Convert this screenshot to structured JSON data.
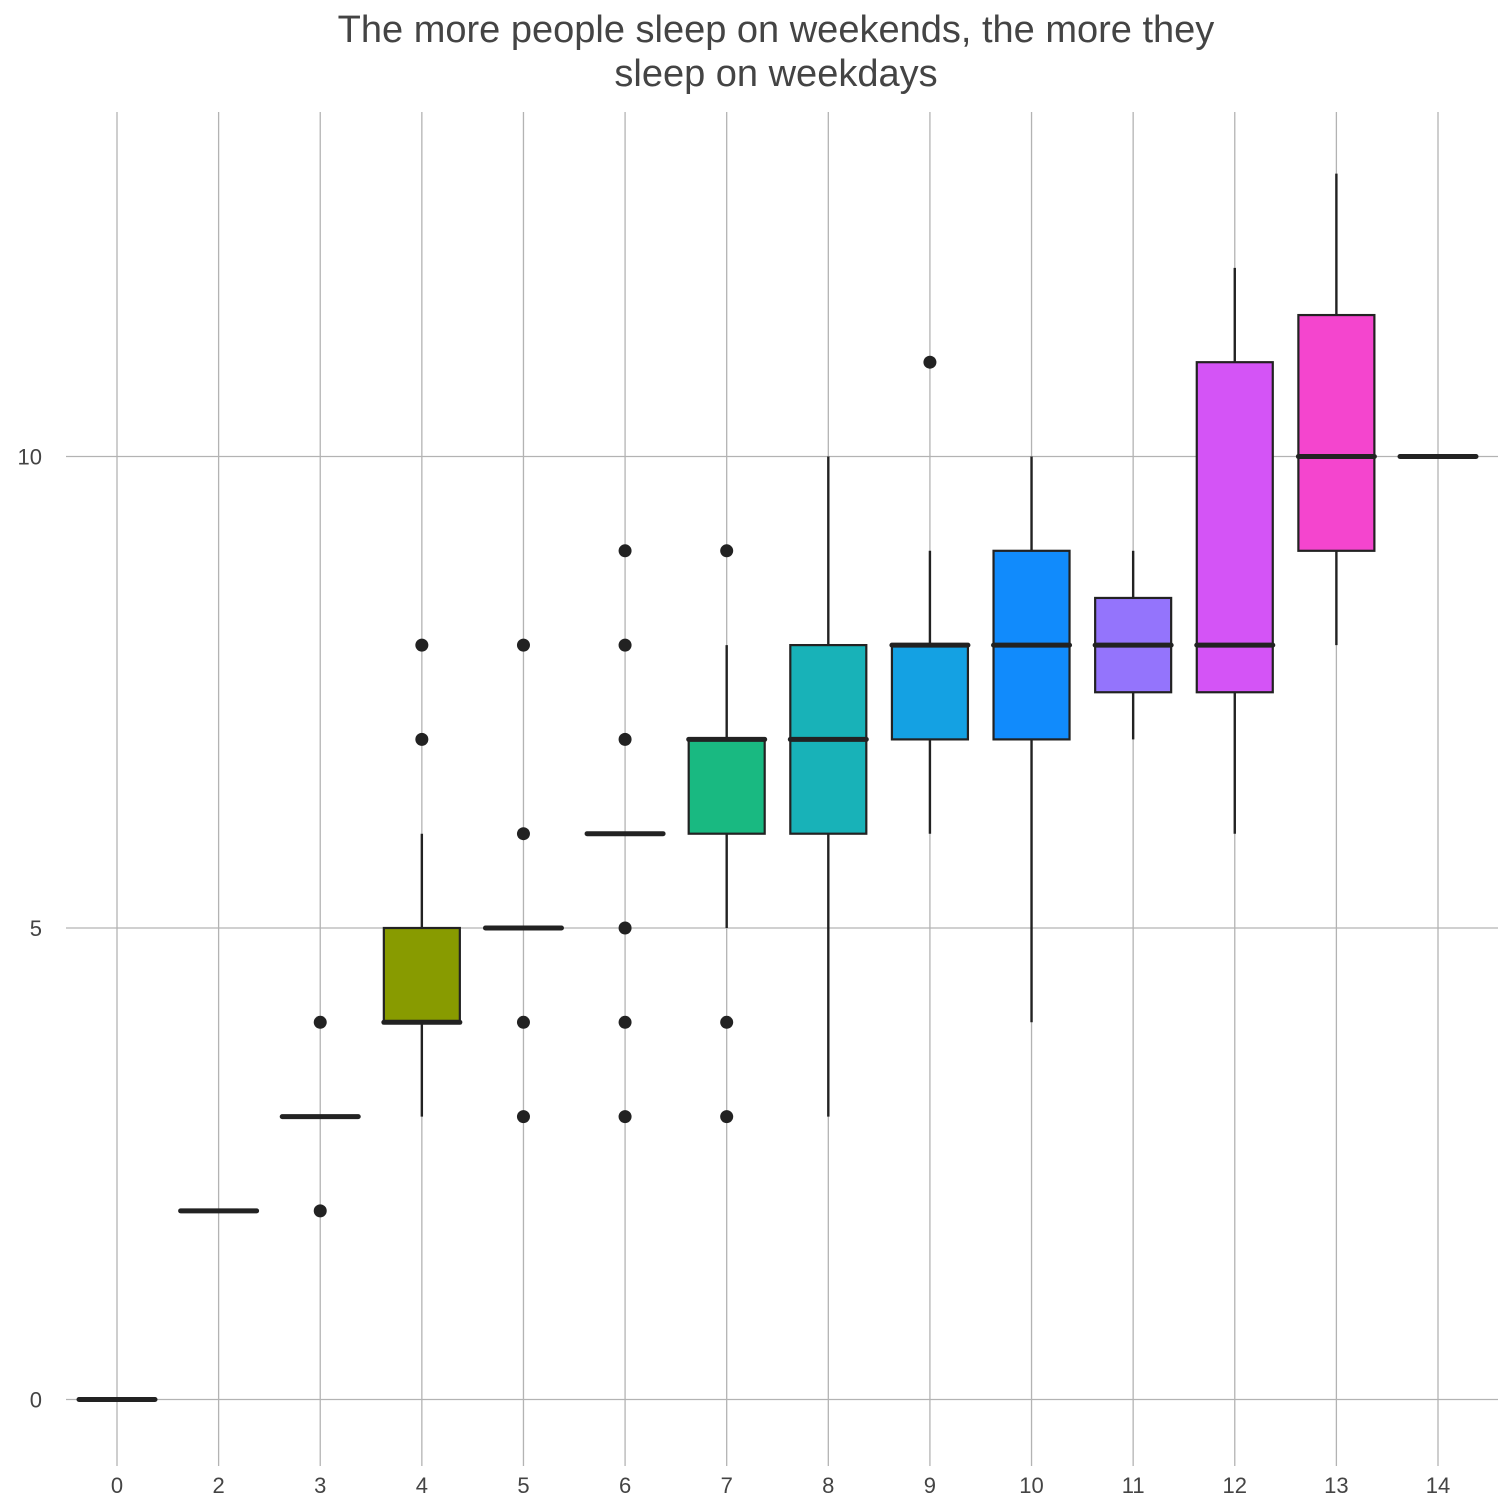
{
  "chart_data": {
    "type": "boxplot",
    "title_lines": [
      "The more people sleep on weekends, the more they",
      "sleep on weekdays"
    ],
    "xlabel": "",
    "ylabel": "",
    "categories": [
      "0",
      "2",
      "3",
      "4",
      "5",
      "6",
      "7",
      "8",
      "9",
      "10",
      "11",
      "12",
      "13",
      "14"
    ],
    "y_ticks": [
      0,
      5,
      10
    ],
    "ylim": [
      -0.7,
      13.7
    ],
    "grid": true,
    "legend": "none",
    "boxes": [
      {
        "category": "0",
        "lower_whisker": 0,
        "q1": 0,
        "median": 0,
        "q3": 0,
        "upper_whisker": 0,
        "outliers": [],
        "color": "#F8766D"
      },
      {
        "category": "2",
        "lower_whisker": 2,
        "q1": 2,
        "median": 2,
        "q3": 2,
        "upper_whisker": 2,
        "outliers": [],
        "color": "#DB8E00"
      },
      {
        "category": "3",
        "lower_whisker": 3,
        "q1": 3,
        "median": 3,
        "q3": 3,
        "upper_whisker": 3,
        "outliers": [
          2,
          4
        ],
        "color": "#AEA200"
      },
      {
        "category": "4",
        "lower_whisker": 3,
        "q1": 4,
        "median": 4,
        "q3": 5,
        "upper_whisker": 6,
        "outliers": [
          7,
          8
        ],
        "color": "#889B00"
      },
      {
        "category": "5",
        "lower_whisker": 5,
        "q1": 5,
        "median": 5,
        "q3": 5,
        "upper_whisker": 5,
        "outliers": [
          3,
          4,
          6,
          8
        ],
        "color": "#5EB300"
      },
      {
        "category": "6",
        "lower_whisker": 6,
        "q1": 6,
        "median": 6,
        "q3": 6,
        "upper_whisker": 6,
        "outliers": [
          3,
          4,
          5,
          7,
          8,
          9
        ],
        "color": "#00BD5C"
      },
      {
        "category": "7",
        "lower_whisker": 5,
        "q1": 6,
        "median": 7,
        "q3": 7,
        "upper_whisker": 8,
        "outliers": [
          3,
          4,
          9
        ],
        "color": "#19B981"
      },
      {
        "category": "8",
        "lower_whisker": 3,
        "q1": 6,
        "median": 7,
        "q3": 8,
        "upper_whisker": 10,
        "outliers": [],
        "color": "#18B2B8"
      },
      {
        "category": "9",
        "lower_whisker": 6,
        "q1": 7,
        "median": 8,
        "q3": 8,
        "upper_whisker": 9,
        "outliers": [
          11
        ],
        "color": "#14A1E3"
      },
      {
        "category": "10",
        "lower_whisker": 4,
        "q1": 7,
        "median": 8,
        "q3": 9,
        "upper_whisker": 10,
        "outliers": [],
        "color": "#118BFC"
      },
      {
        "category": "11",
        "lower_whisker": 7,
        "q1": 7.5,
        "median": 8,
        "q3": 8.5,
        "upper_whisker": 9,
        "outliers": [],
        "color": "#9474FC"
      },
      {
        "category": "12",
        "lower_whisker": 6,
        "q1": 7.5,
        "median": 8,
        "q3": 11,
        "upper_whisker": 12,
        "outliers": [],
        "color": "#D454F6"
      },
      {
        "category": "13",
        "lower_whisker": 8,
        "q1": 9,
        "median": 10,
        "q3": 11.5,
        "upper_whisker": 13,
        "outliers": [],
        "color": "#F445CE"
      },
      {
        "category": "14",
        "lower_whisker": 10,
        "q1": 10,
        "median": 10,
        "q3": 10,
        "upper_whisker": 10,
        "outliers": [],
        "color": "#FF61C3"
      }
    ]
  }
}
